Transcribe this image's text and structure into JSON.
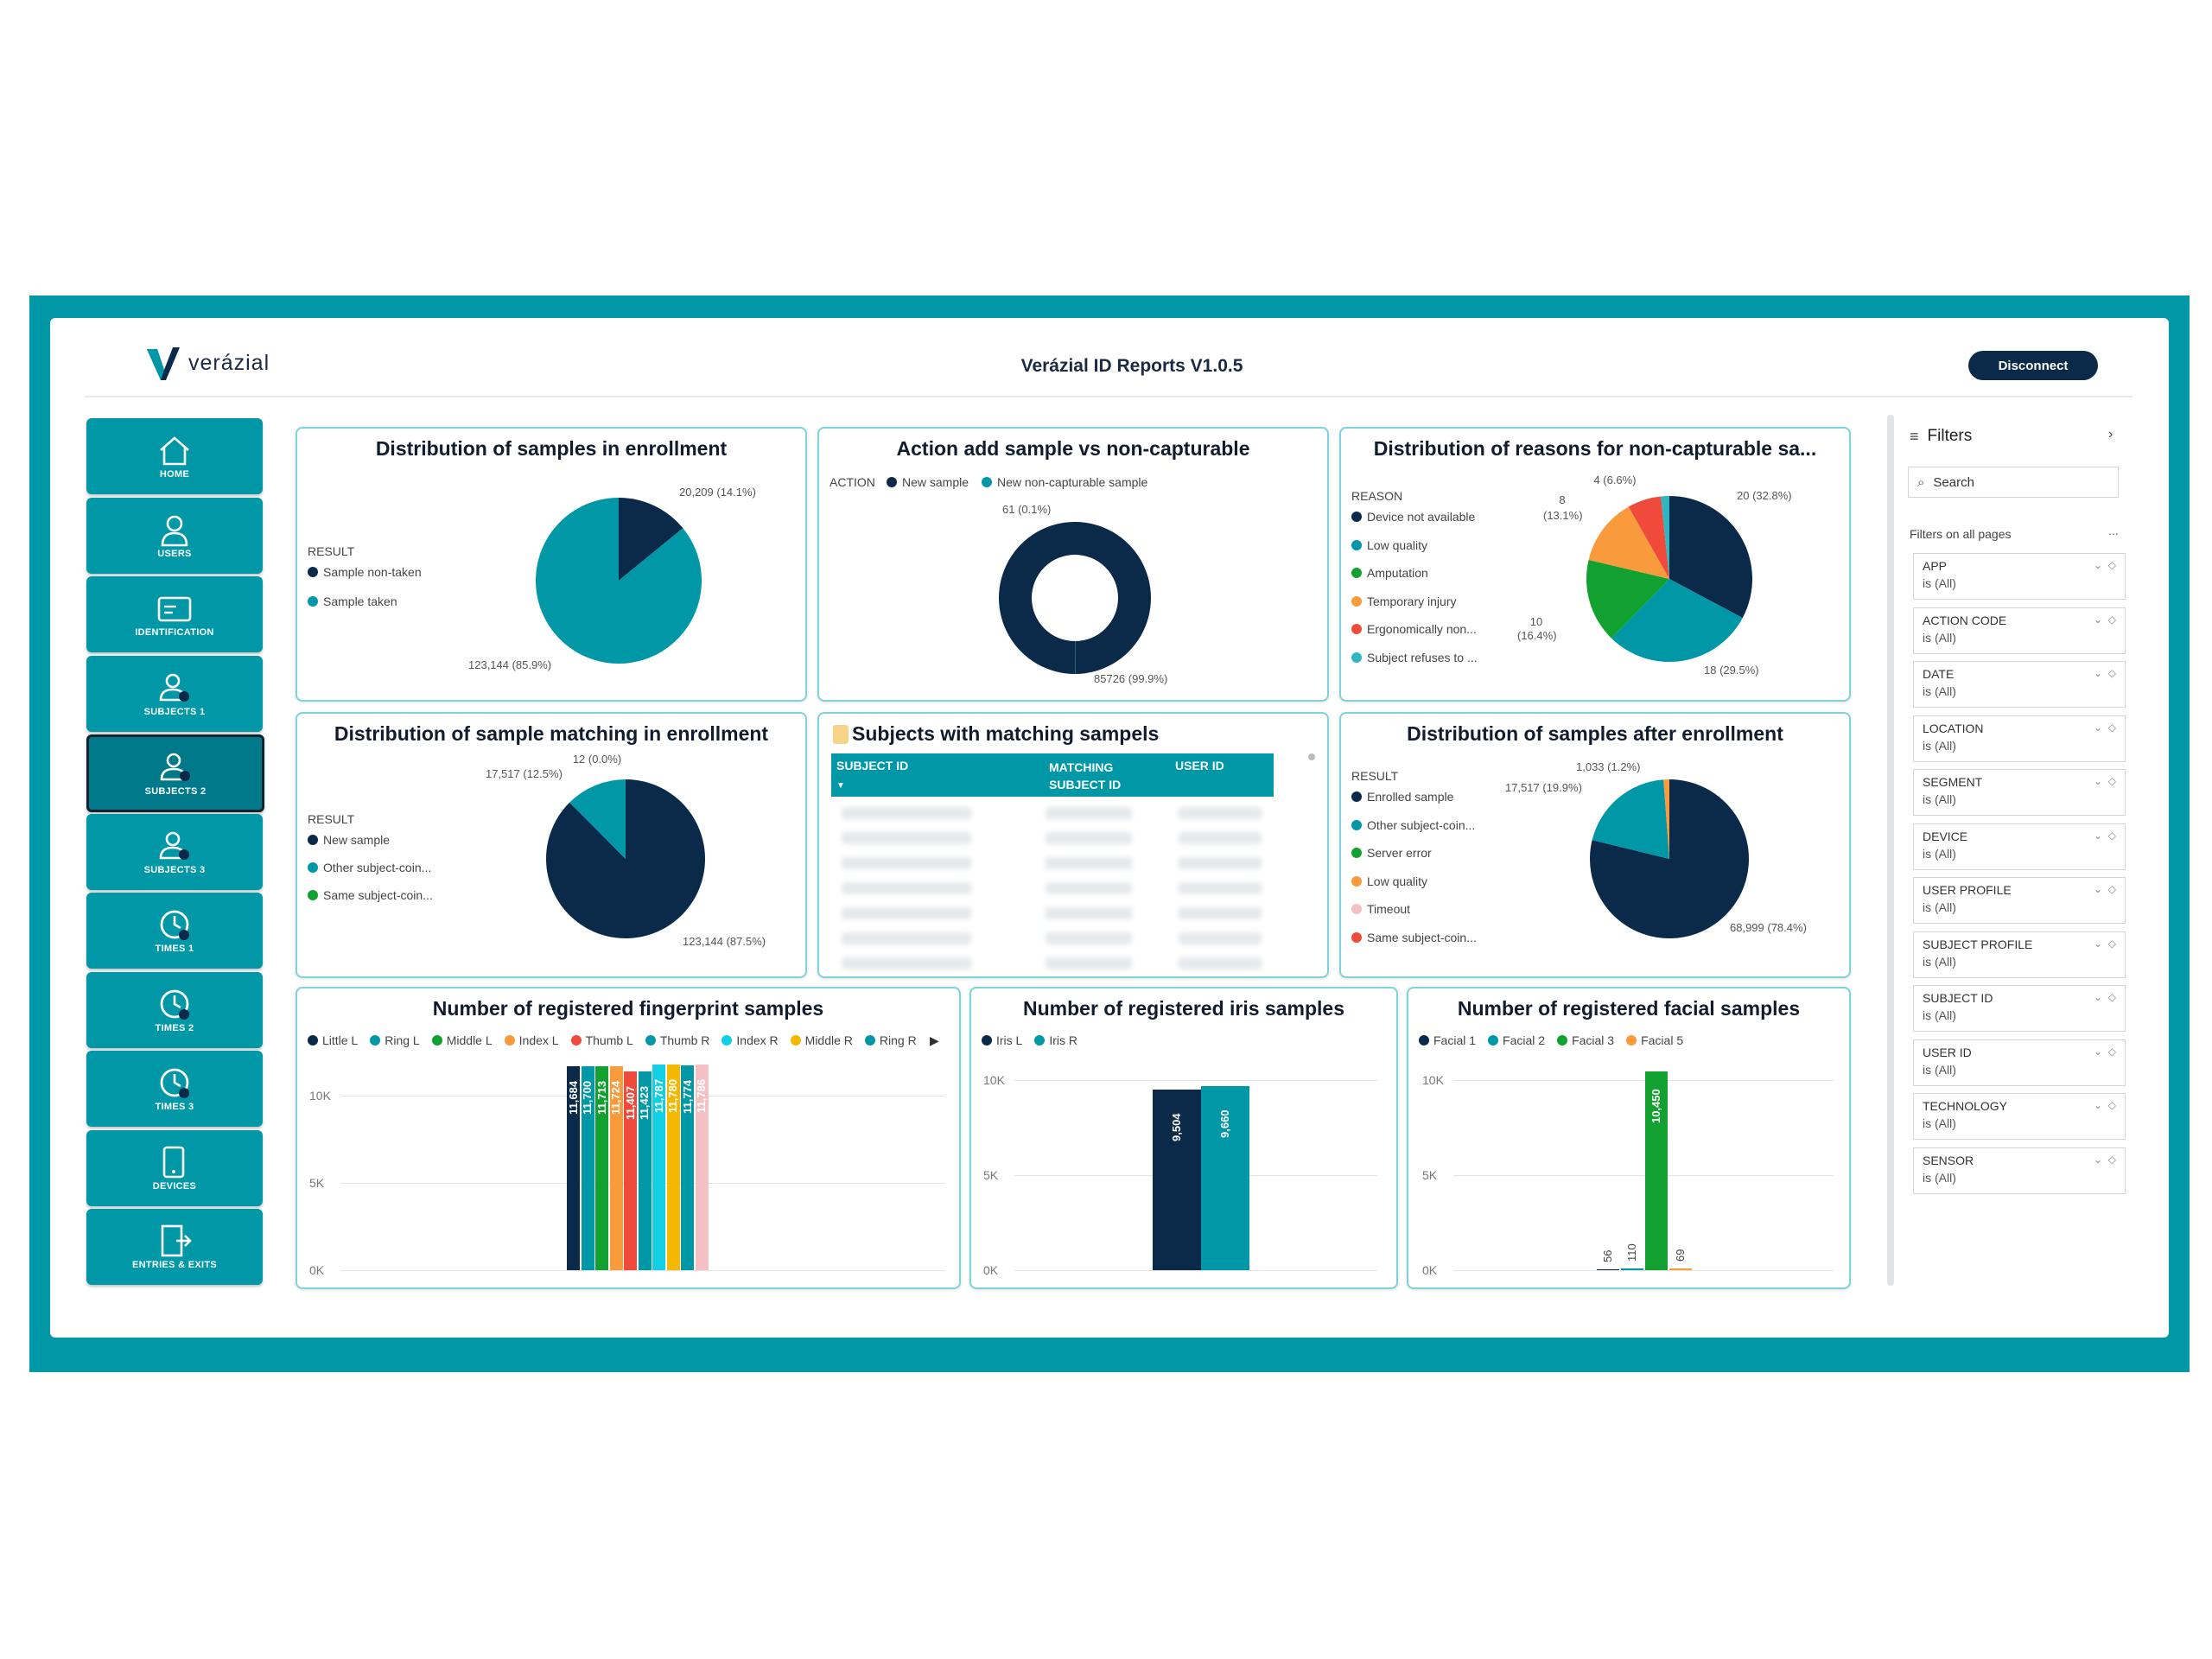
{
  "app": {
    "brand": "verázial",
    "title": "Verázial ID Reports V1.0.5",
    "disconnect_label": "Disconnect"
  },
  "nav": [
    {
      "label": "HOME",
      "icon": "home-icon"
    },
    {
      "label": "USERS",
      "icon": "user-icon"
    },
    {
      "label": "IDENTIFICATION",
      "icon": "id-card-icon"
    },
    {
      "label": "SUBJECTS 1",
      "icon": "subject-icon"
    },
    {
      "label": "SUBJECTS 2",
      "icon": "subject-icon",
      "active": true
    },
    {
      "label": "SUBJECTS 3",
      "icon": "subject-icon"
    },
    {
      "label": "TIMES 1",
      "icon": "clock-icon"
    },
    {
      "label": "TIMES 2",
      "icon": "clock-icon"
    },
    {
      "label": "TIMES 3",
      "icon": "clock-icon"
    },
    {
      "label": "DEVICES",
      "icon": "device-icon"
    },
    {
      "label": "ENTRIES & EXITS",
      "icon": "door-icon"
    }
  ],
  "cards": {
    "enroll": {
      "title": "Distribution of samples in enrollment",
      "legend_title": "RESULT"
    },
    "action": {
      "title": "Action add sample vs non-capturable",
      "legend_title": "ACTION"
    },
    "reasons": {
      "title": "Distribution of reasons for non-capturable sa...",
      "legend_title": "REASON"
    },
    "matching": {
      "title": "Distribution of sample matching in enrollment",
      "legend_title": "RESULT"
    },
    "subjects": {
      "title": "Subjects with matching sampels",
      "columns": [
        "SUBJECT ID",
        "MATCHING SUBJECT ID",
        "USER ID"
      ]
    },
    "after": {
      "title": "Distribution of samples after enrollment",
      "legend_title": "RESULT"
    },
    "finger": {
      "title": "Number of registered fingerprint samples"
    },
    "iris": {
      "title": "Number of registered iris samples"
    },
    "facial": {
      "title": "Number of registered facial samples"
    }
  },
  "filters": {
    "title": "Filters",
    "search_placeholder": "Search",
    "section_label": "Filters on all pages",
    "section_more": "...",
    "items": [
      {
        "name": "APP",
        "value": "is (All)"
      },
      {
        "name": "ACTION CODE",
        "value": "is (All)"
      },
      {
        "name": "DATE",
        "value": "is (All)"
      },
      {
        "name": "LOCATION",
        "value": "is (All)"
      },
      {
        "name": "SEGMENT",
        "value": "is (All)"
      },
      {
        "name": "DEVICE",
        "value": "is (All)"
      },
      {
        "name": "USER PROFILE",
        "value": "is (All)"
      },
      {
        "name": "SUBJECT PROFILE",
        "value": "is (All)"
      },
      {
        "name": "SUBJECT ID",
        "value": "is (All)"
      },
      {
        "name": "USER ID",
        "value": "is (All)"
      },
      {
        "name": "TECHNOLOGY",
        "value": "is (All)"
      },
      {
        "name": "SENSOR",
        "value": "is (All)"
      }
    ]
  },
  "colors": {
    "navy": "#0b2a4a",
    "teal": "#0097a7",
    "green": "#12a130",
    "orange": "#f99b3c",
    "red": "#f04a3c",
    "cyan": "#2fb6c0",
    "pink": "#f4c0c4",
    "yellow": "#f5b800"
  },
  "chart_data": [
    {
      "id": "enroll",
      "type": "pie",
      "slices": [
        {
          "name": "Sample non-taken",
          "value": 20209,
          "label": "20,209 (14.1%)",
          "color": "#0b2a4a"
        },
        {
          "name": "Sample taken",
          "value": 123144,
          "label": "123,144 (85.9%)",
          "color": "#0097a7"
        }
      ]
    },
    {
      "id": "action",
      "type": "pie",
      "donut": true,
      "slices": [
        {
          "name": "New sample",
          "value": 85726,
          "label": "85726 (99.9%)",
          "color": "#0b2a4a"
        },
        {
          "name": "New non-capturable sample",
          "value": 61,
          "label": "61 (0.1%)",
          "color": "#0097a7"
        }
      ]
    },
    {
      "id": "reasons",
      "type": "pie",
      "slices": [
        {
          "name": "Device not available",
          "value": 20,
          "label": "20 (32.8%)",
          "color": "#0b2a4a"
        },
        {
          "name": "Low quality",
          "value": 18,
          "label": "18 (29.5%)",
          "color": "#0097a7"
        },
        {
          "name": "Amputation",
          "value": 10,
          "label": "10 (16.4%)",
          "color": "#12a130"
        },
        {
          "name": "Temporary injury",
          "value": 8,
          "label": "8 (13.1%)",
          "color": "#f99b3c"
        },
        {
          "name": "Ergonomically non...",
          "value": 4,
          "label": "4 (6.6%)",
          "color": "#f04a3c"
        },
        {
          "name": "Subject refuses to ...",
          "value": 1,
          "label": "",
          "color": "#2fb6c0"
        }
      ]
    },
    {
      "id": "matching",
      "type": "pie",
      "slices": [
        {
          "name": "New sample",
          "value": 123144,
          "label": "123,144 (87.5%)",
          "color": "#0b2a4a"
        },
        {
          "name": "Other subject-coin...",
          "value": 17517,
          "label": "17,517 (12.5%)",
          "color": "#0097a7"
        },
        {
          "name": "Same subject-coin...",
          "value": 12,
          "label": "12 (0.0%)",
          "color": "#12a130"
        }
      ]
    },
    {
      "id": "after",
      "type": "pie",
      "slices": [
        {
          "name": "Enrolled sample",
          "value": 68999,
          "label": "68,999 (78.4%)",
          "color": "#0b2a4a"
        },
        {
          "name": "Other subject-coin...",
          "value": 17517,
          "label": "17,517 (19.9%)",
          "color": "#0097a7"
        },
        {
          "name": "Server error",
          "value": 0,
          "label": "",
          "color": "#12a130"
        },
        {
          "name": "Low quality",
          "value": 1033,
          "label": "1,033 (1.2%)",
          "color": "#f99b3c"
        },
        {
          "name": "Timeout",
          "value": 0,
          "label": "",
          "color": "#f4c0c4"
        },
        {
          "name": "Same subject-coin...",
          "value": 0,
          "label": "",
          "color": "#f04a3c"
        }
      ]
    },
    {
      "id": "finger",
      "type": "bar",
      "ylim": [
        0,
        12000
      ],
      "yticks": [
        "0K",
        "5K",
        "10K"
      ],
      "series": [
        {
          "name": "Little L",
          "value": 11684,
          "label": "11,684",
          "color": "#0b2a4a"
        },
        {
          "name": "Ring L",
          "value": 11700,
          "label": "11,700",
          "color": "#0097a7"
        },
        {
          "name": "Middle L",
          "value": 11713,
          "label": "11,713",
          "color": "#12a130"
        },
        {
          "name": "Index L",
          "value": 11724,
          "label": "11,724",
          "color": "#f99b3c"
        },
        {
          "name": "Thumb L",
          "value": 11407,
          "label": "11,407",
          "color": "#f04a3c"
        },
        {
          "name": "Thumb R",
          "value": 11423,
          "label": "11,423",
          "color": "#0097a7"
        },
        {
          "name": "Index R",
          "value": 11787,
          "label": "11,787",
          "color": "#12cfe3"
        },
        {
          "name": "Middle R",
          "value": 11780,
          "label": "11,780",
          "color": "#f5b800"
        },
        {
          "name": "Ring R",
          "value": 11774,
          "label": "11,774",
          "color": "#0097a7"
        },
        {
          "name": "",
          "value": 11786,
          "label": "11,786",
          "color": "#f4c0c4"
        }
      ]
    },
    {
      "id": "iris",
      "type": "bar",
      "ylim": [
        0,
        10000
      ],
      "yticks": [
        "0K",
        "5K",
        "10K"
      ],
      "series": [
        {
          "name": "Iris L",
          "value": 9504,
          "label": "9,504",
          "color": "#0b2a4a"
        },
        {
          "name": "Iris R",
          "value": 9660,
          "label": "9,660",
          "color": "#0097a7"
        }
      ]
    },
    {
      "id": "facial",
      "type": "bar",
      "ylim": [
        0,
        11000
      ],
      "yticks": [
        "0K",
        "5K",
        "10K"
      ],
      "series": [
        {
          "name": "Facial 1",
          "value": 56,
          "label": "56",
          "color": "#0b2a4a"
        },
        {
          "name": "Facial 2",
          "value": 110,
          "label": "110",
          "color": "#0097a7"
        },
        {
          "name": "Facial 3",
          "value": 10450,
          "label": "10,450",
          "color": "#12a130"
        },
        {
          "name": "Facial 5",
          "value": 69,
          "label": "69",
          "color": "#f99b3c"
        }
      ]
    }
  ]
}
